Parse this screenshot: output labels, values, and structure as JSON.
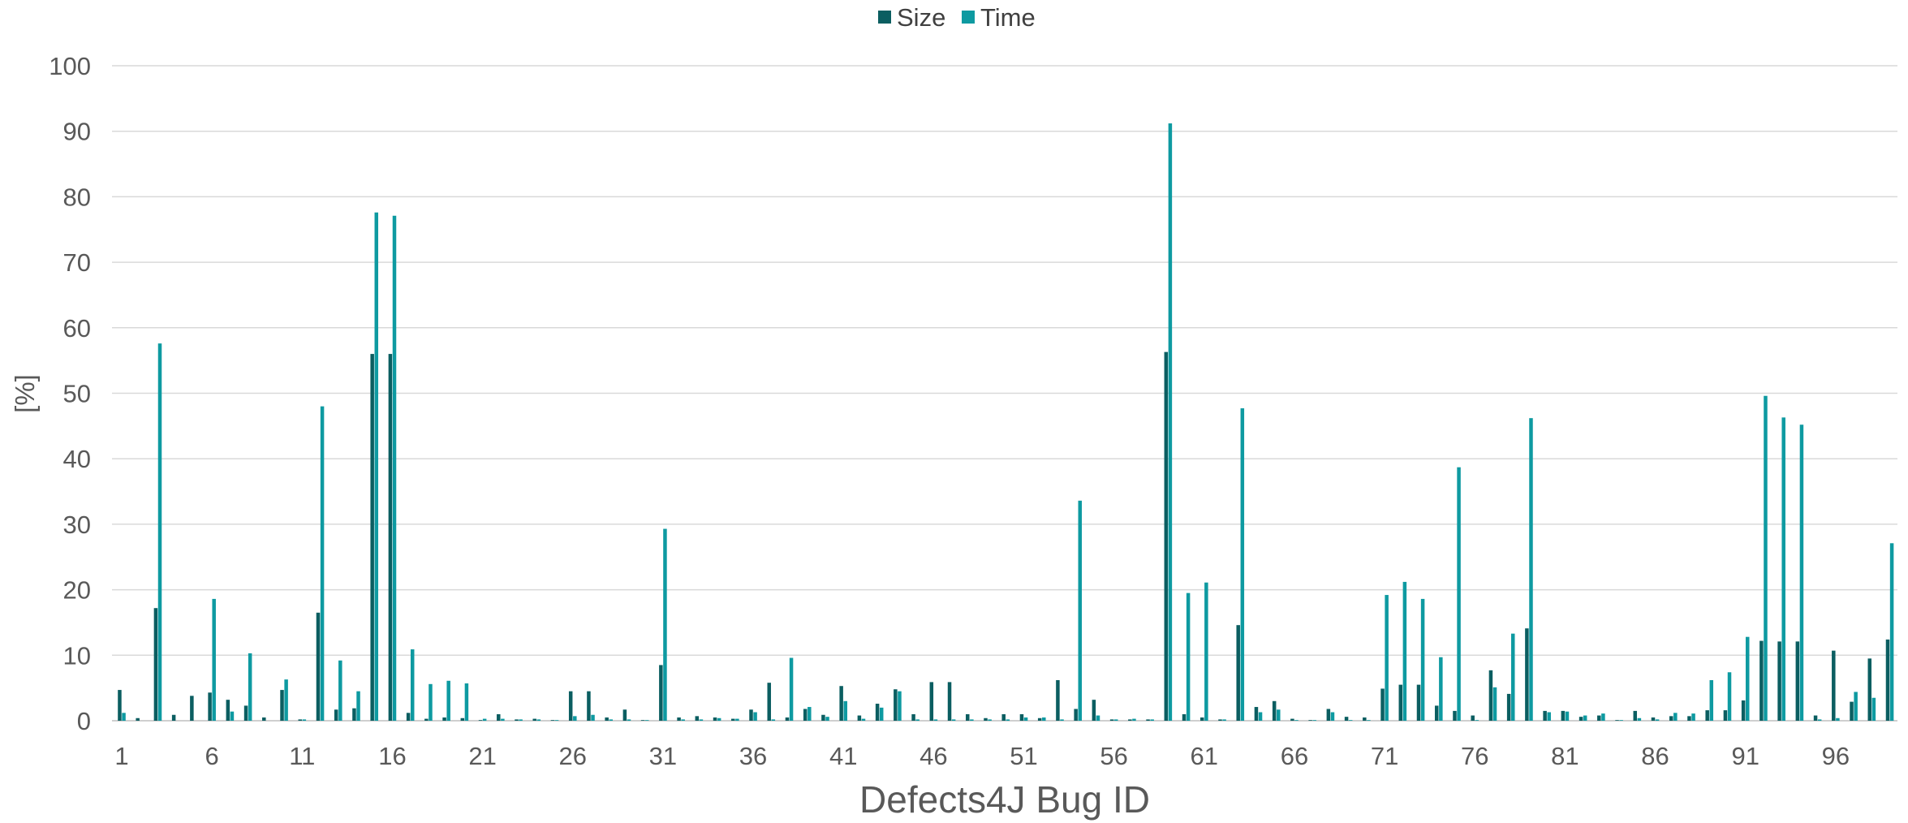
{
  "colors": {
    "size": "#0b5e61",
    "time": "#0e9aa1",
    "grid": "#d9d9d9",
    "text": "#595959"
  },
  "chart_data": {
    "type": "bar",
    "title": "",
    "xlabel": "Defects4J Bug ID",
    "ylabel": "[%]",
    "ylim": [
      0,
      100
    ],
    "yticks": [
      0,
      10,
      20,
      30,
      40,
      50,
      60,
      70,
      80,
      90,
      100
    ],
    "grid": "horizontal",
    "legend": "top-center",
    "x_tick_labels": [
      1,
      6,
      11,
      16,
      21,
      26,
      31,
      36,
      41,
      46,
      51,
      56,
      61,
      66,
      71,
      76,
      81,
      86,
      91,
      96
    ],
    "categories": [
      1,
      2,
      3,
      4,
      5,
      6,
      7,
      8,
      9,
      10,
      11,
      12,
      13,
      14,
      15,
      16,
      17,
      18,
      19,
      20,
      21,
      22,
      23,
      24,
      25,
      26,
      27,
      28,
      29,
      30,
      31,
      32,
      33,
      34,
      35,
      36,
      37,
      38,
      39,
      40,
      41,
      42,
      43,
      44,
      45,
      46,
      47,
      48,
      49,
      50,
      51,
      52,
      53,
      54,
      55,
      56,
      57,
      58,
      59,
      60,
      61,
      62,
      63,
      64,
      65,
      66,
      67,
      68,
      69,
      70,
      71,
      72,
      73,
      74,
      75,
      76,
      77,
      78,
      79,
      80,
      81,
      82,
      83,
      84,
      85,
      86,
      87,
      88,
      89,
      90,
      91,
      92,
      93,
      94,
      95,
      96,
      97,
      98,
      99,
      100
    ],
    "series": [
      {
        "name": "Size",
        "color": "#0b5e61",
        "values": [
          4.7,
          0.4,
          17.2,
          0.9,
          3.8,
          4.3,
          3.2,
          2.3,
          0.5,
          4.7,
          0.2,
          16.5,
          1.7,
          1.9,
          56.0,
          56.0,
          1.2,
          0.3,
          0.5,
          0.4,
          0.1,
          1.0,
          0.2,
          0.3,
          0.1,
          4.5,
          4.5,
          0.5,
          1.7,
          0.1,
          8.5,
          0.5,
          0.7,
          0.5,
          0.3,
          1.7,
          5.8,
          0.5,
          1.8,
          0.9,
          5.3,
          0.8,
          2.6,
          4.8,
          1.0,
          5.9,
          5.9,
          1.0,
          0.4,
          1.0,
          1.0,
          0.4,
          6.2,
          1.8,
          3.2,
          0.2,
          0.2,
          0.2,
          56.3,
          1.0,
          0.5,
          0.2,
          14.6,
          2.1,
          3.0,
          0.3,
          0.1,
          1.8,
          0.6,
          0.5,
          4.9,
          5.5,
          5.5,
          2.3,
          1.5,
          0.8,
          7.7,
          4.1,
          14.1,
          1.5,
          1.5,
          0.6,
          0.8,
          0.1,
          1.5,
          0.5,
          0.7,
          0.7,
          1.6,
          1.6,
          3.1,
          12.2,
          12.1,
          12.1,
          0.8,
          10.7,
          2.9,
          9.5,
          12.4,
          0.0
        ]
      },
      {
        "name": "Time",
        "color": "#0e9aa1",
        "values": [
          1.2,
          0.0,
          57.6,
          0.0,
          0.0,
          18.6,
          1.4,
          10.3,
          0.0,
          6.3,
          0.2,
          48.0,
          9.2,
          4.5,
          77.6,
          77.1,
          10.9,
          5.6,
          6.1,
          5.7,
          0.3,
          0.3,
          0.2,
          0.2,
          0.1,
          0.7,
          0.9,
          0.2,
          0.2,
          0.1,
          29.3,
          0.2,
          0.2,
          0.4,
          0.3,
          1.3,
          0.2,
          9.6,
          2.1,
          0.6,
          3.0,
          0.3,
          2.0,
          4.5,
          0.2,
          0.2,
          0.2,
          0.2,
          0.2,
          0.2,
          0.5,
          0.5,
          0.2,
          33.6,
          0.8,
          0.2,
          0.3,
          0.2,
          91.2,
          19.5,
          21.1,
          0.2,
          47.7,
          1.3,
          1.7,
          0.1,
          0.1,
          1.3,
          0.1,
          0.1,
          19.2,
          21.2,
          18.6,
          9.7,
          38.7,
          0.1,
          5.1,
          13.3,
          46.2,
          1.3,
          1.4,
          0.8,
          1.1,
          0.1,
          0.4,
          0.2,
          1.2,
          1.1,
          6.2,
          7.4,
          12.8,
          49.6,
          46.3,
          45.2,
          0.2,
          0.4,
          4.4,
          3.5,
          27.1,
          0.0
        ]
      }
    ]
  }
}
